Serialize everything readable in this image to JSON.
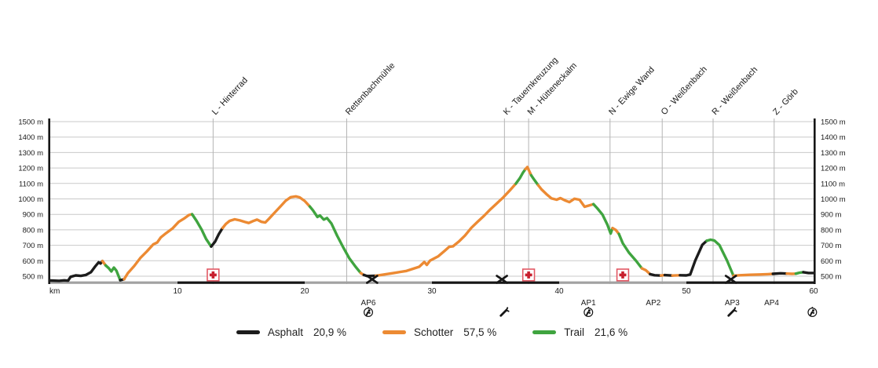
{
  "colors": {
    "asphalt": "#1c1c1c",
    "schotter": "#ec8a33",
    "trail": "#3fa43f",
    "grid": "#c9c9c9",
    "waypoint_line": "#b4b4b4",
    "axis": "#161616",
    "scalebar_light": "#a2a2a2",
    "scalebar_dark": "#161616",
    "medical_red": "#c8202f",
    "medical_border": "#e25864",
    "text": "#1a1a1a"
  },
  "chart_data": {
    "type": "line",
    "title": "",
    "x_axis_label": "km",
    "x_ticks": [
      10,
      20,
      30,
      40,
      50,
      60
    ],
    "x_range": [
      0,
      60
    ],
    "y_range": [
      500,
      1500
    ],
    "y_tick_labels": [
      "500 m",
      "600 m",
      "700 m",
      "800 m",
      "900 m",
      "1000 m",
      "1100 m",
      "1200 m",
      "1300 m",
      "1400 m",
      "1500 m"
    ],
    "grid": "on",
    "surface_names": {
      "A": "Asphalt",
      "S": "Schotter",
      "T": "Trail"
    },
    "surface_colors": {
      "A": "#1c1c1c",
      "S": "#ec8a33",
      "T": "#3fa43f"
    },
    "waypoints": [
      {
        "label": "L - Hinterrad",
        "km": 12.8
      },
      {
        "label": "Rettenbachmühle",
        "km": 23.3
      },
      {
        "label": "K - Tauernkreuzung",
        "km": 35.7
      },
      {
        "label": "M - Hütteneckalm",
        "km": 37.6
      },
      {
        "label": "N - Ewige Wand",
        "km": 44.0
      },
      {
        "label": "O - Weißenbach",
        "km": 48.1
      },
      {
        "label": "R - Weißenbach",
        "km": 52.1
      },
      {
        "label": "Z - Görb",
        "km": 56.9
      }
    ],
    "medical_stations_km": [
      12.8,
      37.6,
      45.0
    ],
    "service_points_km": [
      25.3,
      35.5,
      53.5
    ],
    "checkpoints": [
      {
        "label": "AP6",
        "km": 25.0,
        "icon": "station-icon"
      },
      {
        "label": "",
        "km": 35.7,
        "icon": "wrench-icon"
      },
      {
        "label": "AP1",
        "km": 42.3,
        "icon": "station-icon"
      },
      {
        "label": "AP2",
        "km": 47.4,
        "icon": ""
      },
      {
        "label": "AP3",
        "km": 53.6,
        "icon": "wrench-icon"
      },
      {
        "label": "AP4",
        "km": 56.7,
        "icon": ""
      },
      {
        "label": "",
        "km": 59.9,
        "icon": "station-icon"
      }
    ],
    "distance_scalebar": {
      "interval_km": 10,
      "pattern": [
        "light",
        "dark",
        "light",
        "dark",
        "light",
        "dark"
      ]
    },
    "profile": [
      [
        0,
        472,
        null
      ],
      [
        0.7,
        470,
        "A"
      ],
      [
        1.1,
        473,
        "A"
      ],
      [
        1.4,
        471,
        "A"
      ],
      [
        1.6,
        496,
        "A"
      ],
      [
        2.0,
        505,
        "A"
      ],
      [
        2.4,
        502,
        "A"
      ],
      [
        2.8,
        508,
        "A"
      ],
      [
        3.2,
        526,
        "A"
      ],
      [
        3.5,
        560,
        "A"
      ],
      [
        3.8,
        590,
        "A"
      ],
      [
        3.95,
        582,
        "A"
      ],
      [
        4.1,
        598,
        "A"
      ],
      [
        4.35,
        570,
        "S"
      ],
      [
        4.6,
        552,
        "T"
      ],
      [
        4.8,
        531,
        "T"
      ],
      [
        5.0,
        556,
        "T"
      ],
      [
        5.2,
        536,
        "T"
      ],
      [
        5.5,
        474,
        "T"
      ],
      [
        5.8,
        480,
        "A"
      ],
      [
        6.1,
        520,
        "S"
      ],
      [
        6.6,
        566,
        "S"
      ],
      [
        7.1,
        620,
        "S"
      ],
      [
        7.6,
        661,
        "S"
      ],
      [
        8.1,
        706,
        "S"
      ],
      [
        8.4,
        718,
        "S"
      ],
      [
        8.7,
        752,
        "S"
      ],
      [
        9.1,
        778,
        "S"
      ],
      [
        9.6,
        808,
        "S"
      ],
      [
        10.1,
        852,
        "S"
      ],
      [
        10.5,
        872,
        "S"
      ],
      [
        10.9,
        896,
        "S"
      ],
      [
        11.15,
        901,
        "S"
      ],
      [
        11.5,
        858,
        "T"
      ],
      [
        11.9,
        801,
        "T"
      ],
      [
        12.25,
        741,
        "T"
      ],
      [
        12.65,
        692,
        "T"
      ],
      [
        12.95,
        723,
        "A"
      ],
      [
        13.25,
        772,
        "A"
      ],
      [
        13.55,
        812,
        "A"
      ],
      [
        13.8,
        838,
        "S"
      ],
      [
        14.1,
        858,
        "S"
      ],
      [
        14.5,
        868,
        "S"
      ],
      [
        14.9,
        861,
        "S"
      ],
      [
        15.3,
        851,
        "S"
      ],
      [
        15.6,
        844,
        "S"
      ],
      [
        15.95,
        857,
        "S"
      ],
      [
        16.25,
        866,
        "S"
      ],
      [
        16.6,
        852,
        "S"
      ],
      [
        16.9,
        847,
        "S"
      ],
      [
        17.2,
        872,
        "S"
      ],
      [
        17.6,
        908,
        "S"
      ],
      [
        18.1,
        952,
        "S"
      ],
      [
        18.5,
        988,
        "S"
      ],
      [
        18.9,
        1011,
        "S"
      ],
      [
        19.3,
        1016,
        "S"
      ],
      [
        19.6,
        1010,
        "S"
      ],
      [
        20.0,
        987,
        "S"
      ],
      [
        20.4,
        951,
        "S"
      ],
      [
        20.65,
        926,
        "T"
      ],
      [
        21.0,
        883,
        "T"
      ],
      [
        21.2,
        893,
        "T"
      ],
      [
        21.5,
        866,
        "T"
      ],
      [
        21.75,
        876,
        "T"
      ],
      [
        22.1,
        841,
        "T"
      ],
      [
        22.55,
        762,
        "T"
      ],
      [
        23.0,
        691,
        "T"
      ],
      [
        23.5,
        617,
        "T"
      ],
      [
        24.0,
        561,
        "T"
      ],
      [
        24.4,
        521,
        "T"
      ],
      [
        24.65,
        508,
        "S"
      ],
      [
        24.9,
        501,
        "A"
      ],
      [
        25.6,
        503,
        "A"
      ],
      [
        26.1,
        509,
        "S"
      ],
      [
        27.0,
        521,
        "S"
      ],
      [
        28.0,
        534,
        "S"
      ],
      [
        29.0,
        561,
        "S"
      ],
      [
        29.4,
        592,
        "S"
      ],
      [
        29.6,
        573,
        "S"
      ],
      [
        29.85,
        601,
        "S"
      ],
      [
        30.5,
        629,
        "S"
      ],
      [
        31.0,
        664,
        "S"
      ],
      [
        31.35,
        690,
        "S"
      ],
      [
        31.65,
        693,
        "S"
      ],
      [
        32.1,
        723,
        "S"
      ],
      [
        32.6,
        763,
        "S"
      ],
      [
        33.1,
        813,
        "S"
      ],
      [
        33.6,
        853,
        "S"
      ],
      [
        34.1,
        891,
        "S"
      ],
      [
        34.6,
        933,
        "S"
      ],
      [
        35.1,
        971,
        "S"
      ],
      [
        35.6,
        1009,
        "S"
      ],
      [
        36.1,
        1053,
        "S"
      ],
      [
        36.6,
        1099,
        "S"
      ],
      [
        36.9,
        1133,
        "T"
      ],
      [
        37.15,
        1169,
        "T"
      ],
      [
        37.35,
        1193,
        "T"
      ],
      [
        37.5,
        1206,
        "S"
      ],
      [
        37.8,
        1153,
        "S"
      ],
      [
        38.05,
        1123,
        "T"
      ],
      [
        38.35,
        1089,
        "T"
      ],
      [
        38.6,
        1063,
        "S"
      ],
      [
        39.0,
        1031,
        "S"
      ],
      [
        39.4,
        1003,
        "S"
      ],
      [
        39.8,
        995,
        "S"
      ],
      [
        40.1,
        1005,
        "S"
      ],
      [
        40.5,
        989,
        "S"
      ],
      [
        40.8,
        979,
        "S"
      ],
      [
        41.2,
        1001,
        "S"
      ],
      [
        41.6,
        995,
        "S"
      ],
      [
        42.0,
        949,
        "S"
      ],
      [
        42.4,
        959,
        "S"
      ],
      [
        42.7,
        966,
        "S"
      ],
      [
        43.0,
        939,
        "T"
      ],
      [
        43.4,
        899,
        "T"
      ],
      [
        43.8,
        831,
        "T"
      ],
      [
        44.05,
        776,
        "T"
      ],
      [
        44.2,
        811,
        "T"
      ],
      [
        44.45,
        799,
        "S"
      ],
      [
        44.7,
        773,
        "S"
      ],
      [
        45.0,
        713,
        "T"
      ],
      [
        45.5,
        651,
        "T"
      ],
      [
        46.05,
        599,
        "T"
      ],
      [
        46.5,
        551,
        "T"
      ],
      [
        46.8,
        539,
        "S"
      ],
      [
        47.15,
        513,
        "S"
      ],
      [
        47.5,
        506,
        "A"
      ],
      [
        48.0,
        504,
        "A"
      ],
      [
        48.3,
        507,
        "S"
      ],
      [
        48.9,
        504,
        "A"
      ],
      [
        49.5,
        506,
        "S"
      ],
      [
        50.0,
        505,
        "A"
      ],
      [
        50.3,
        511,
        "A"
      ],
      [
        50.7,
        601,
        "A"
      ],
      [
        51.25,
        703,
        "A"
      ],
      [
        51.6,
        729,
        "A"
      ],
      [
        51.9,
        736,
        "T"
      ],
      [
        52.2,
        731,
        "T"
      ],
      [
        52.6,
        701,
        "T"
      ],
      [
        53.2,
        601,
        "T"
      ],
      [
        53.7,
        503,
        "T"
      ],
      [
        54.2,
        506,
        "S"
      ],
      [
        55.0,
        509,
        "S"
      ],
      [
        55.8,
        511,
        "S"
      ],
      [
        56.4,
        513,
        "S"
      ],
      [
        56.8,
        515,
        "S"
      ],
      [
        57.4,
        519,
        "A"
      ],
      [
        57.9,
        517,
        "A"
      ],
      [
        58.3,
        515,
        "S"
      ],
      [
        58.6,
        516,
        "S"
      ],
      [
        58.9,
        523,
        "T"
      ],
      [
        59.2,
        526,
        "T"
      ],
      [
        59.6,
        521,
        "A"
      ],
      [
        60.0,
        521,
        "A"
      ]
    ]
  },
  "legend": {
    "items": [
      {
        "label": "Asphalt",
        "value": "20,9 %",
        "color": "#1c1c1c"
      },
      {
        "label": "Schotter",
        "value": "57,5 %",
        "color": "#ec8a33"
      },
      {
        "label": "Trail",
        "value": "21,6 %",
        "color": "#3fa43f"
      }
    ]
  }
}
